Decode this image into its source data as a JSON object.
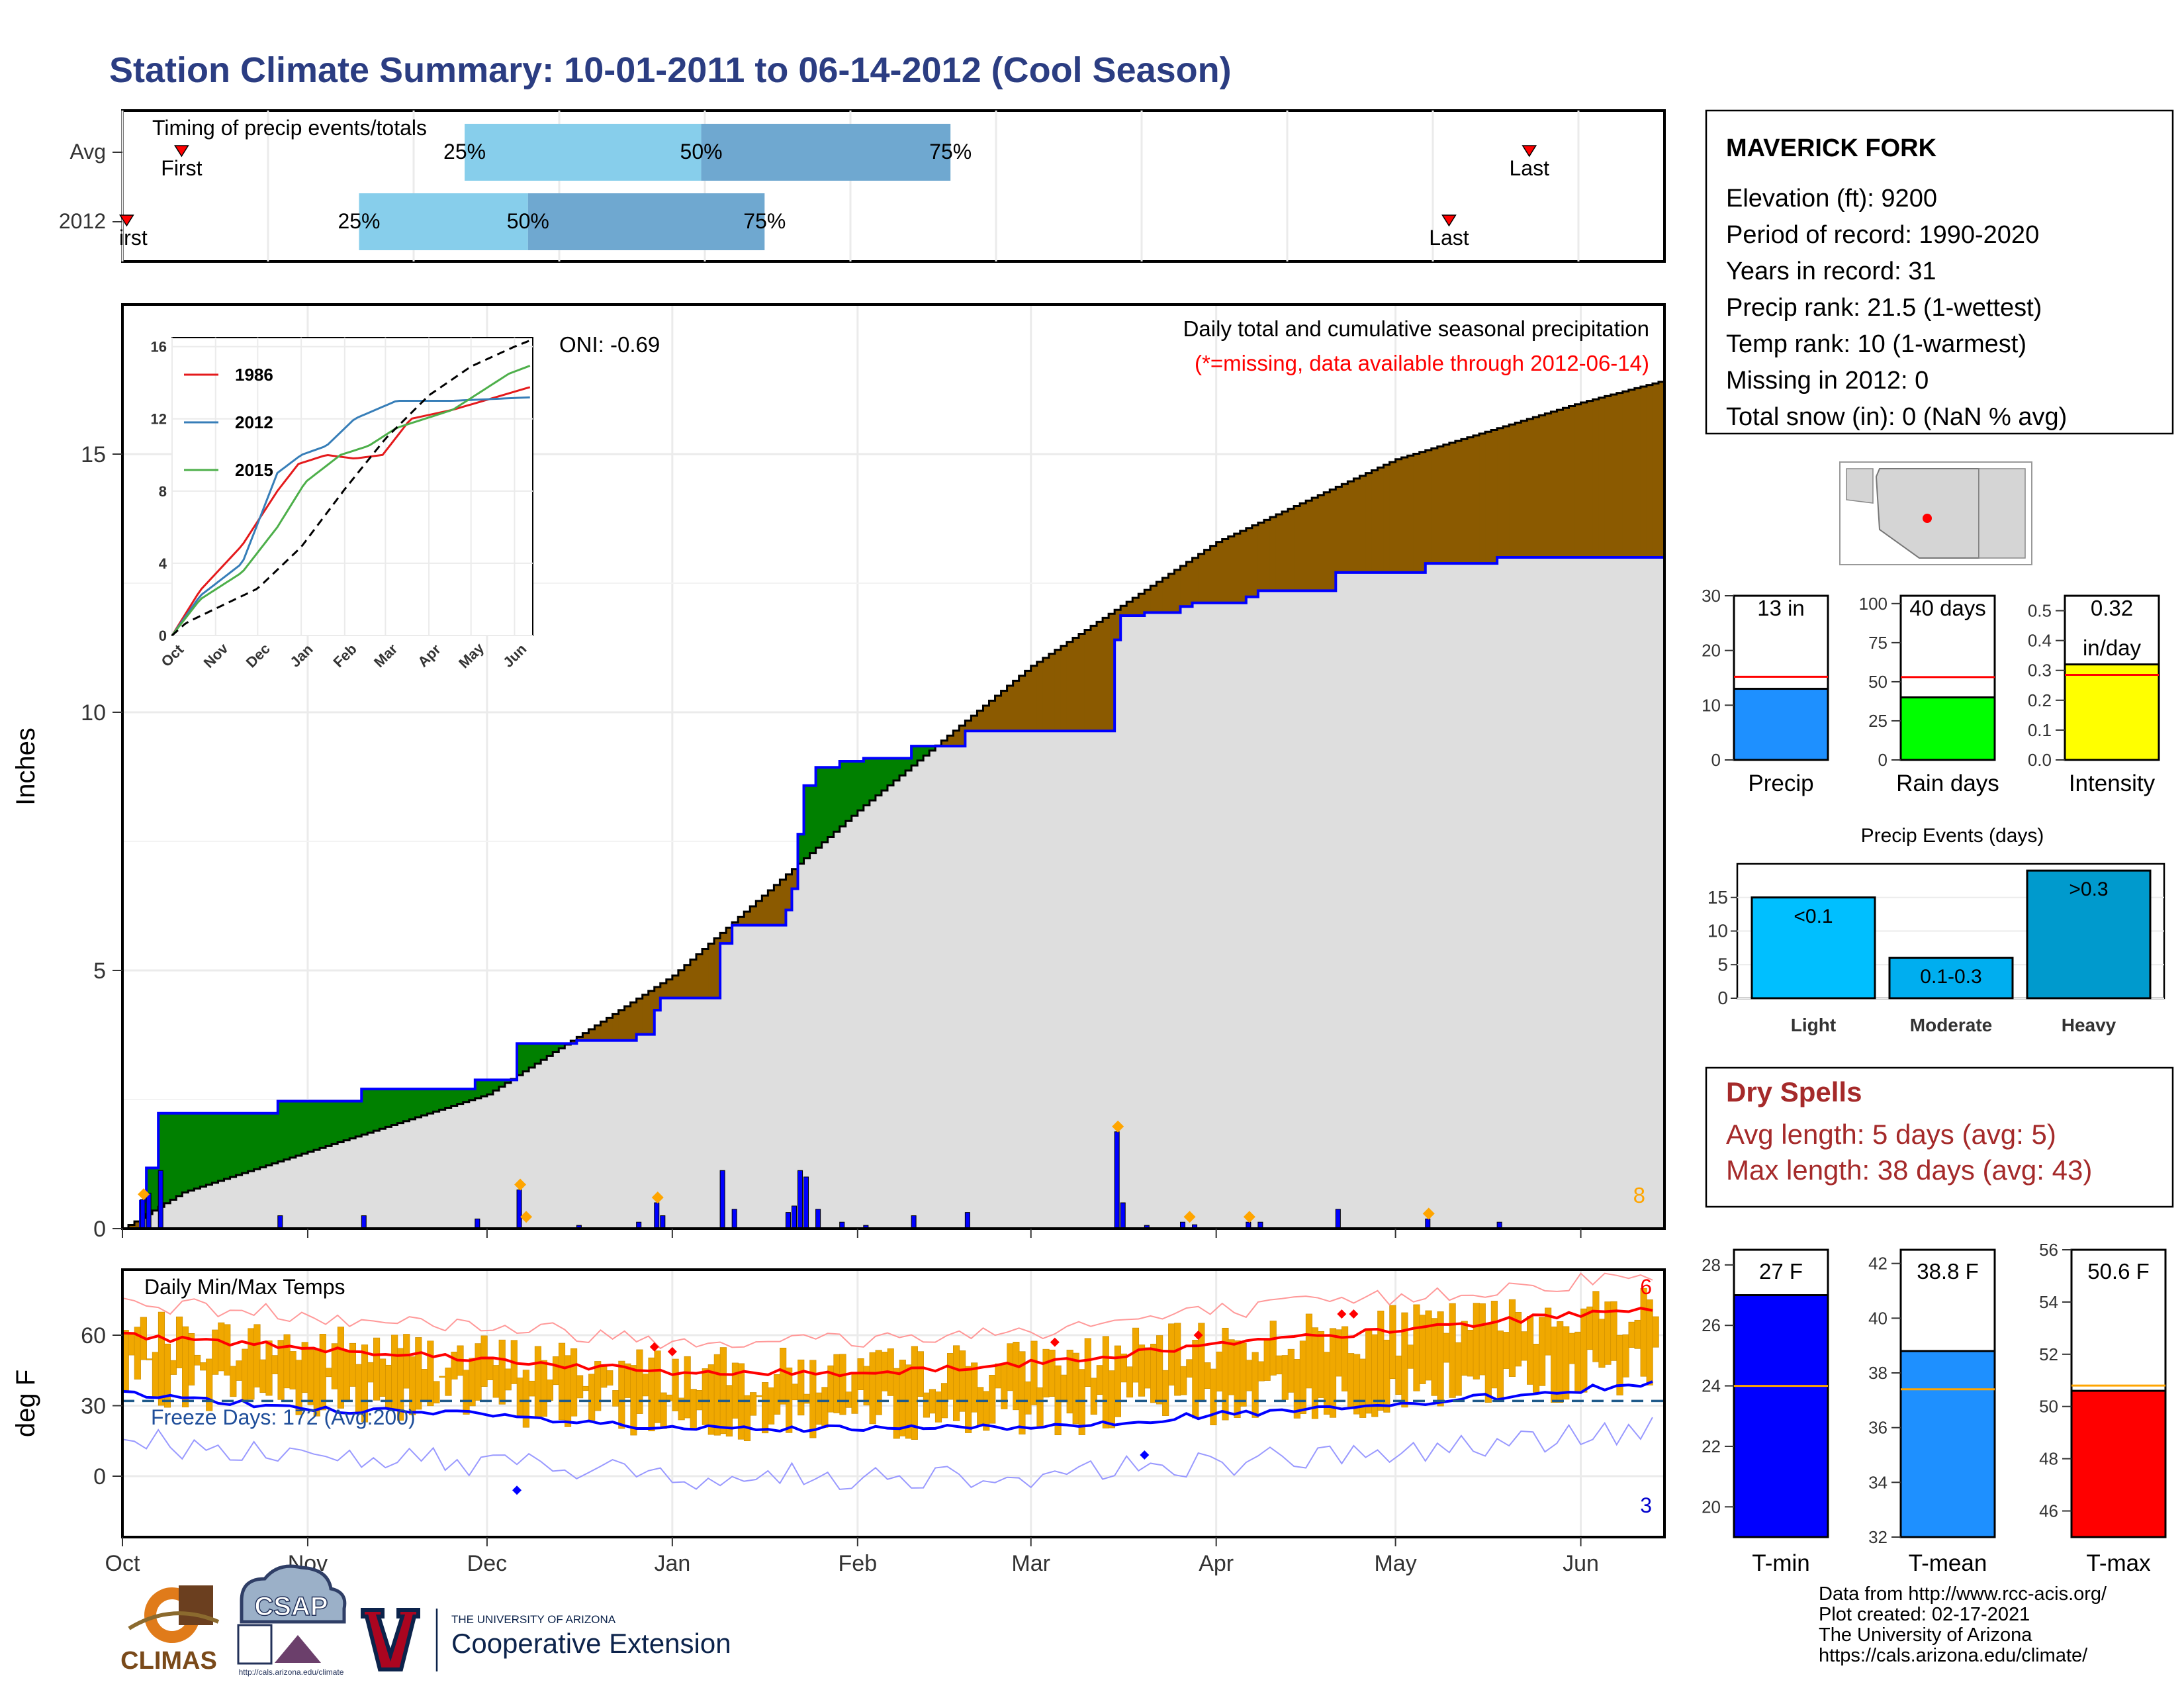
{
  "title": "Station Climate Summary: 10-01-2011 to 06-14-2012 (Cool Season)",
  "colors": {
    "title": "#2b3d82",
    "wet": "#008000",
    "dry": "#8b5a00",
    "avg_fill": "#dedede",
    "daily_bars": "#0000ff",
    "extreme_marker": "#ffa500",
    "q1": "#87ceeb",
    "q2": "#6fa8d0",
    "tmax": "#ff0000",
    "tmin": "#0000ff",
    "range_bars": "#f0a800",
    "dry_spells": "#a52a2a"
  },
  "timing": {
    "title": "Timing of precip events/totals",
    "rows": [
      {
        "label": "Avg",
        "first_day": 14,
        "p25": 81,
        "p50": 137,
        "p75": 196,
        "last_day": 333,
        "first_label": "First",
        "last_label": "Last",
        "p25_label": "25%",
        "p50_label": "50%",
        "p75_label": "75%"
      },
      {
        "label": "2012",
        "first_day": 1,
        "p25": 56,
        "p50": 96,
        "p75": 152,
        "last_day": 314,
        "first_label": "irst",
        "last_label": "Last",
        "p25_label": "25%",
        "p50_label": "50%",
        "p75_label": "75%"
      }
    ]
  },
  "precip": {
    "ylabel": "Inches",
    "yticks": [
      0,
      5,
      10,
      15
    ],
    "caption": "Daily total and cumulative seasonal precipitation",
    "missing_note": "(*=missing, data available through 2012-06-14)",
    "oni": "ONI: -0.69",
    "extreme_count": "8"
  },
  "months": [
    "Oct",
    "Nov",
    "Dec",
    "Jan",
    "Feb",
    "Mar",
    "Apr",
    "May",
    "Jun"
  ],
  "inset": {
    "yticks": [
      "0",
      "4",
      "8",
      "12",
      "16"
    ],
    "legend": [
      {
        "name": "1986",
        "color": "#e41a1c"
      },
      {
        "name": "2012",
        "color": "#377eb8"
      },
      {
        "name": "2015",
        "color": "#4daf4a"
      }
    ]
  },
  "station": {
    "name": "MAVERICK FORK",
    "lines": [
      "Elevation (ft): 9200",
      "Period of record: 1990-2020",
      "Years in record: 31",
      "Precip rank: 21.5 (1-wettest)",
      "Temp rank: 10 (1-warmest)",
      "Missing in 2012: 0",
      "Total snow (in): 0 (NaN % avg)"
    ]
  },
  "mini_bars": [
    {
      "label": "Precip",
      "value": 13,
      "avg": 15.2,
      "max": 30,
      "ticks": [
        "0",
        "10",
        "20",
        "30"
      ],
      "text": "13 in",
      "color": "#1e90ff"
    },
    {
      "label": "Rain days",
      "value": 40,
      "avg": 53,
      "max": 105,
      "ticks": [
        "0",
        "25",
        "50",
        "75",
        "100"
      ],
      "text": "40 days",
      "color": "#00ff00"
    },
    {
      "label": "Intensity",
      "value": 0.32,
      "avg": 0.285,
      "max": 0.55,
      "ticks": [
        "0.0",
        "0.1",
        "0.2",
        "0.3",
        "0.4",
        "0.5"
      ],
      "text": "0.32",
      "text2": "in/day",
      "color": "#ffff00"
    }
  ],
  "events": {
    "title": "Precip Events (days)",
    "yticks": [
      "0",
      "5",
      "10",
      "15"
    ],
    "bars": [
      {
        "label": "Light",
        "inner": "<0.1",
        "value": 15,
        "color": "#00bfff"
      },
      {
        "label": "Moderate",
        "inner": "0.1-0.3",
        "value": 6,
        "color": "#00aeef"
      },
      {
        "label": "Heavy",
        "inner": ">0.3",
        "value": 19,
        "color": "#009acd"
      }
    ]
  },
  "dry_spells": {
    "title": "Dry Spells",
    "avg": "Avg length: 5 days (avg: 5)",
    "max": "Max length: 38 days (avg: 43)"
  },
  "temps": {
    "ylabel": "deg F",
    "yticks": [
      0,
      30,
      60
    ],
    "title": "Daily Min/Max Temps",
    "freeze": "Freeze Days: 172 (Avg:200)",
    "hi_count": "6",
    "lo_count": "3"
  },
  "temp_bars": [
    {
      "label": "T-min",
      "value": 27,
      "avg": 24,
      "min": 19,
      "max": 28.5,
      "ticks": [
        "20",
        "22",
        "24",
        "26",
        "28"
      ],
      "text": "27 F",
      "color": "#0000ff"
    },
    {
      "label": "T-mean",
      "value": 38.8,
      "avg": 37.4,
      "min": 32,
      "max": 42.5,
      "ticks": [
        "32",
        "34",
        "36",
        "38",
        "40",
        "42"
      ],
      "text": "38.8 F",
      "color": "#1e90ff"
    },
    {
      "label": "T-max",
      "value": 50.6,
      "avg": 50.8,
      "min": 45,
      "max": 56,
      "ticks": [
        "46",
        "48",
        "50",
        "52",
        "54",
        "56"
      ],
      "text": "50.6 F",
      "color": "#ff0000"
    }
  ],
  "logos": {
    "climas": "CLIMAS",
    "csap": "CSAP",
    "csap_url": "http://cals.arizona.edu/climate",
    "ua_small": "THE UNIVERSITY OF ARIZONA",
    "ua_big": "Cooperative Extension"
  },
  "credits": [
    "Data from http://www.rcc-acis.org/",
    "Plot created: 02-17-2021",
    "The University of Arizona",
    "https://cals.arizona.edu/climate/"
  ]
}
